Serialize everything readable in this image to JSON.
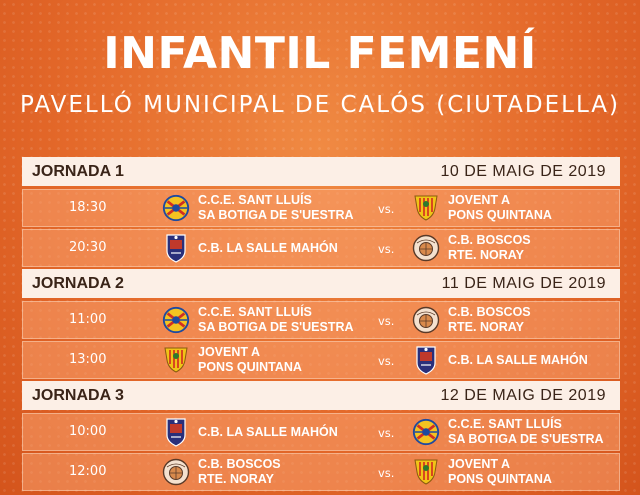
{
  "header": {
    "title": "INFANTIL FEMENÍ",
    "subtitle": "PAVELLÓ MUNICIPAL DE CALÓS (CIUTADELLA)"
  },
  "vs_label": "vs.",
  "jornadas": [
    {
      "name": "JORNADA 1",
      "date": "10 DE MAIG DE 2019",
      "matches": [
        {
          "time": "18:30",
          "home": [
            "C.C.E. SANT LLUÍS",
            "SA BOTIGA DE S'UESTRA"
          ],
          "home_logo": "sant-lluis-crest",
          "away": [
            "JOVENT A",
            "PONS QUINTANA"
          ],
          "away_logo": "jovent-crest"
        },
        {
          "time": "20:30",
          "home": [
            "C.B. LA SALLE MAHÓN",
            ""
          ],
          "home_logo": "la-salle-crest",
          "away": [
            "C.B. BOSCOS",
            "RTE. NORAY"
          ],
          "away_logo": "boscos-crest"
        }
      ]
    },
    {
      "name": "JORNADA 2",
      "date": "11 DE MAIG DE 2019",
      "matches": [
        {
          "time": "11:00",
          "home": [
            "C.C.E. SANT LLUÍS",
            "SA BOTIGA DE S'UESTRA"
          ],
          "home_logo": "sant-lluis-crest",
          "away": [
            "C.B. BOSCOS",
            "RTE. NORAY"
          ],
          "away_logo": "boscos-crest"
        },
        {
          "time": "13:00",
          "home": [
            "JOVENT A",
            "PONS QUINTANA"
          ],
          "home_logo": "jovent-crest",
          "away": [
            "C.B. LA SALLE MAHÓN",
            ""
          ],
          "away_logo": "la-salle-crest"
        }
      ]
    },
    {
      "name": "JORNADA 3",
      "date": "12 DE MAIG DE 2019",
      "matches": [
        {
          "time": "10:00",
          "home": [
            "C.B. LA SALLE MAHÓN",
            ""
          ],
          "home_logo": "la-salle-crest",
          "away": [
            "C.C.E. SANT LLUÍS",
            "SA BOTIGA DE S'UESTRA"
          ],
          "away_logo": "sant-lluis-crest"
        },
        {
          "time": "12:00",
          "home": [
            "C.B. BOSCOS",
            "RTE. NORAY"
          ],
          "home_logo": "boscos-crest",
          "away": [
            "JOVENT A",
            "PONS QUINTANA"
          ],
          "away_logo": "jovent-crest"
        }
      ]
    }
  ]
}
